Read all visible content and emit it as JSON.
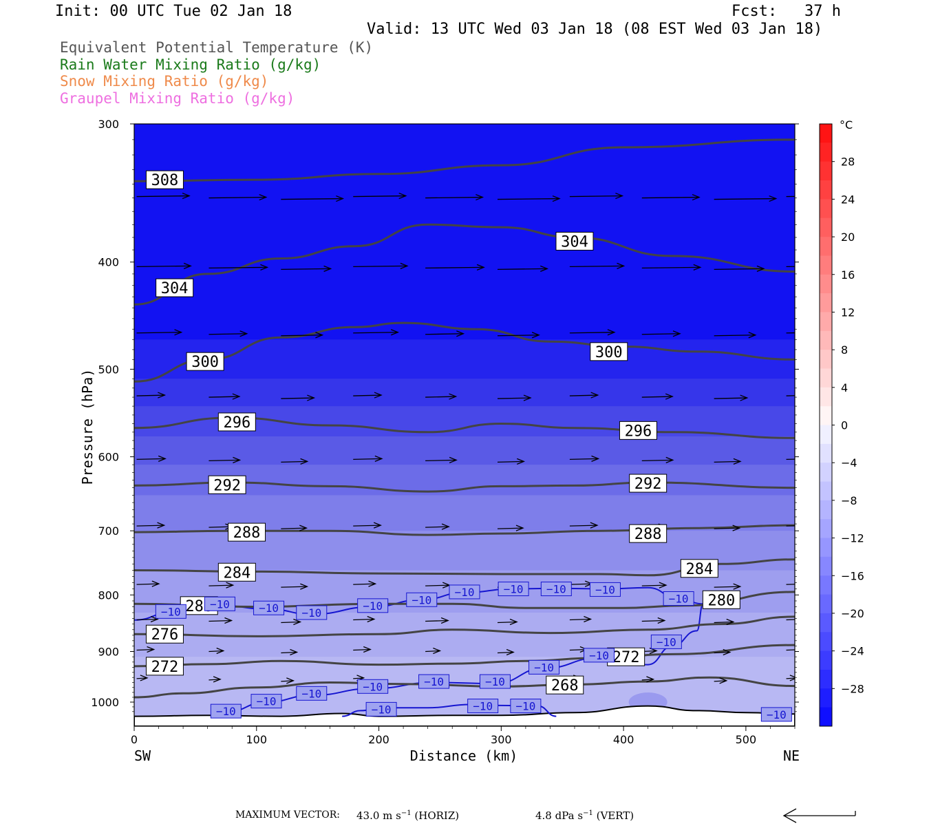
{
  "header": {
    "init": "Init: 00 UTC Tue 02 Jan 18",
    "fcst": "Fcst:   37 h",
    "valid": "Valid: 13 UTC Wed 03 Jan 18 (08 EST Wed 03 Jan 18)"
  },
  "legend": [
    {
      "label": "Equivalent Potential Temperature (K)",
      "color": "#555555"
    },
    {
      "label": "Rain Water Mixing Ratio (g/kg)",
      "color": "#1a7a1a"
    },
    {
      "label": "Snow Mixing Ratio (g/kg)",
      "color": "#ef8a4a"
    },
    {
      "label": "Graupel Mixing Ratio (g/kg)",
      "color": "#ee6fe0"
    }
  ],
  "axes": {
    "ylabel": "Pressure (hPa)",
    "xlabel": "Distance (km)",
    "left_end": "SW",
    "right_end": "NE",
    "y_ticks": [
      "300",
      "400",
      "500",
      "600",
      "700",
      "800",
      "900",
      "1000"
    ],
    "x_ticks": [
      "0",
      "100",
      "200",
      "300",
      "400",
      "500"
    ]
  },
  "colorbar": {
    "unit": "°C",
    "labels": [
      "28",
      "24",
      "20",
      "16",
      "12",
      "8",
      "4",
      "0",
      "−4",
      "−8",
      "−12",
      "−16",
      "−20",
      "−24",
      "−28"
    ]
  },
  "footer": {
    "max_vector_label": "MAXIMUM VECTOR:",
    "horiz": "43.0 m s",
    "horiz_exp": "−1",
    "horiz_tag": "(HORIZ)",
    "vert": "4.8 dPa s",
    "vert_exp": "−1",
    "vert_tag": "(VERT)"
  },
  "chart_data": {
    "type": "heatmap",
    "description_fields": "temperature shading (°C) with equivalent potential temperature contours (K) and wind vectors",
    "x_range": [
      0,
      540
    ],
    "y_range_hpa": [
      300,
      1030
    ],
    "y_scale": "log",
    "theta_e_contours": [
      {
        "value": 308,
        "points": [
          [
            0,
            338
          ],
          [
            100,
            337
          ],
          [
            200,
            333
          ],
          [
            300,
            327
          ],
          [
            400,
            315
          ],
          [
            540,
            310
          ]
        ]
      },
      {
        "value": 304,
        "points": [
          [
            0,
            437
          ],
          [
            60,
            410
          ],
          [
            120,
            397
          ],
          [
            180,
            387
          ],
          [
            240,
            370
          ],
          [
            300,
            372
          ],
          [
            360,
            380
          ],
          [
            440,
            395
          ],
          [
            540,
            408
          ]
        ]
      },
      {
        "value": 300,
        "points": [
          [
            0,
            513
          ],
          [
            60,
            490
          ],
          [
            120,
            468
          ],
          [
            180,
            458
          ],
          [
            220,
            454
          ],
          [
            280,
            460
          ],
          [
            340,
            472
          ],
          [
            400,
            477
          ],
          [
            460,
            482
          ],
          [
            540,
            490
          ]
        ]
      },
      {
        "value": 296,
        "points": [
          [
            0,
            565
          ],
          [
            80,
            553
          ],
          [
            160,
            562
          ],
          [
            240,
            570
          ],
          [
            300,
            560
          ],
          [
            360,
            565
          ],
          [
            440,
            570
          ],
          [
            540,
            577
          ]
        ]
      },
      {
        "value": 292,
        "points": [
          [
            0,
            637
          ],
          [
            80,
            633
          ],
          [
            160,
            638
          ],
          [
            240,
            645
          ],
          [
            300,
            638
          ],
          [
            360,
            637
          ],
          [
            420,
            633
          ],
          [
            540,
            640
          ]
        ]
      },
      {
        "value": 288,
        "points": [
          [
            0,
            702
          ],
          [
            80,
            700
          ],
          [
            160,
            700
          ],
          [
            240,
            706
          ],
          [
            300,
            704
          ],
          [
            380,
            700
          ],
          [
            460,
            696
          ],
          [
            540,
            692
          ]
        ]
      },
      {
        "value": 284,
        "points": [
          [
            0,
            760
          ],
          [
            100,
            762
          ],
          [
            200,
            765
          ],
          [
            300,
            766
          ],
          [
            380,
            766
          ],
          [
            420,
            768
          ],
          [
            480,
            750
          ],
          [
            540,
            743
          ]
        ]
      },
      {
        "value": 280,
        "points": [
          [
            0,
            815
          ],
          [
            100,
            820
          ],
          [
            200,
            815
          ],
          [
            260,
            815
          ],
          [
            320,
            822
          ],
          [
            400,
            822
          ],
          [
            450,
            818
          ],
          [
            540,
            795
          ]
        ]
      },
      {
        "value": 276,
        "points": [
          [
            0,
            868
          ],
          [
            100,
            872
          ],
          [
            200,
            868
          ],
          [
            260,
            860
          ],
          [
            340,
            866
          ],
          [
            420,
            860
          ],
          [
            480,
            850
          ],
          [
            540,
            837
          ]
        ]
      },
      {
        "value": 272,
        "points": [
          [
            0,
            928
          ],
          [
            60,
            924
          ],
          [
            120,
            918
          ],
          [
            200,
            925
          ],
          [
            260,
            923
          ],
          [
            320,
            918
          ],
          [
            380,
            912
          ],
          [
            440,
            905
          ],
          [
            540,
            888
          ]
        ]
      },
      {
        "value": 268,
        "points": [
          [
            0,
            990
          ],
          [
            40,
            982
          ],
          [
            100,
            970
          ],
          [
            160,
            960
          ],
          [
            220,
            963
          ],
          [
            300,
            968
          ],
          [
            360,
            964
          ],
          [
            420,
            958
          ],
          [
            470,
            950
          ],
          [
            540,
            967
          ]
        ]
      }
    ],
    "temperature_contour_labels": [
      {
        "value": -10,
        "x": 30,
        "p": 828
      },
      {
        "value": -10,
        "x": 70,
        "p": 815
      },
      {
        "value": -10,
        "x": 110,
        "p": 822
      },
      {
        "value": -10,
        "x": 145,
        "p": 830
      },
      {
        "value": -10,
        "x": 195,
        "p": 818
      },
      {
        "value": -10,
        "x": 235,
        "p": 808
      },
      {
        "value": -10,
        "x": 270,
        "p": 795
      },
      {
        "value": -10,
        "x": 310,
        "p": 790
      },
      {
        "value": -10,
        "x": 345,
        "p": 790
      },
      {
        "value": -10,
        "x": 385,
        "p": 791
      },
      {
        "value": -10,
        "x": 445,
        "p": 806
      },
      {
        "value": -10,
        "x": 435,
        "p": 882
      },
      {
        "value": -10,
        "x": 380,
        "p": 907
      },
      {
        "value": -10,
        "x": 335,
        "p": 930
      },
      {
        "value": -10,
        "x": 295,
        "p": 958
      },
      {
        "value": -10,
        "x": 245,
        "p": 958
      },
      {
        "value": -10,
        "x": 195,
        "p": 968
      },
      {
        "value": -10,
        "x": 145,
        "p": 982
      },
      {
        "value": -10,
        "x": 108,
        "p": 998
      },
      {
        "value": -10,
        "x": 75,
        "p": 1019
      },
      {
        "value": -10,
        "x": 202,
        "p": 1015
      },
      {
        "value": -10,
        "x": 285,
        "p": 1008
      },
      {
        "value": -10,
        "x": 320,
        "p": 1008
      },
      {
        "value": -10,
        "x": 525,
        "p": 1026
      }
    ],
    "temperature_shading_levels": [
      -28,
      -26,
      -24,
      -22,
      -20,
      -18,
      -16,
      -14,
      -12,
      -10,
      -8,
      -6
    ]
  }
}
